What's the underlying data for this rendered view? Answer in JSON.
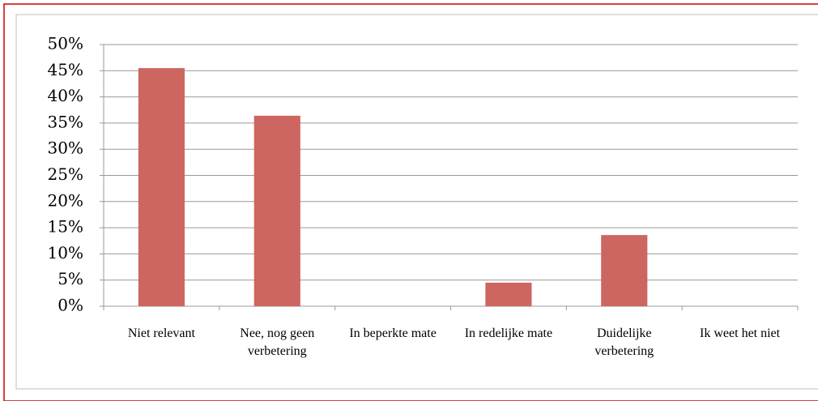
{
  "chart_data": {
    "type": "bar",
    "categories": [
      "Niet relevant",
      "Nee, nog geen verbetering",
      "In beperkte mate",
      "In redelijke mate",
      "Duidelijke verbetering",
      "Ik weet het niet"
    ],
    "values": [
      45.5,
      36.4,
      0,
      4.5,
      13.6,
      0
    ],
    "color": "#cd6560",
    "ylim": [
      0,
      50
    ],
    "yticks": [
      {
        "value": 0,
        "label": "0%"
      },
      {
        "value": 5,
        "label": "5%"
      },
      {
        "value": 10,
        "label": "10%"
      },
      {
        "value": 15,
        "label": "15%"
      },
      {
        "value": 20,
        "label": "20%"
      },
      {
        "value": 25,
        "label": "25%"
      },
      {
        "value": 30,
        "label": "30%"
      },
      {
        "value": 35,
        "label": "35%"
      },
      {
        "value": 40,
        "label": "40%"
      },
      {
        "value": 45,
        "label": "45%"
      },
      {
        "value": 50,
        "label": "50%"
      }
    ],
    "grid": true
  }
}
